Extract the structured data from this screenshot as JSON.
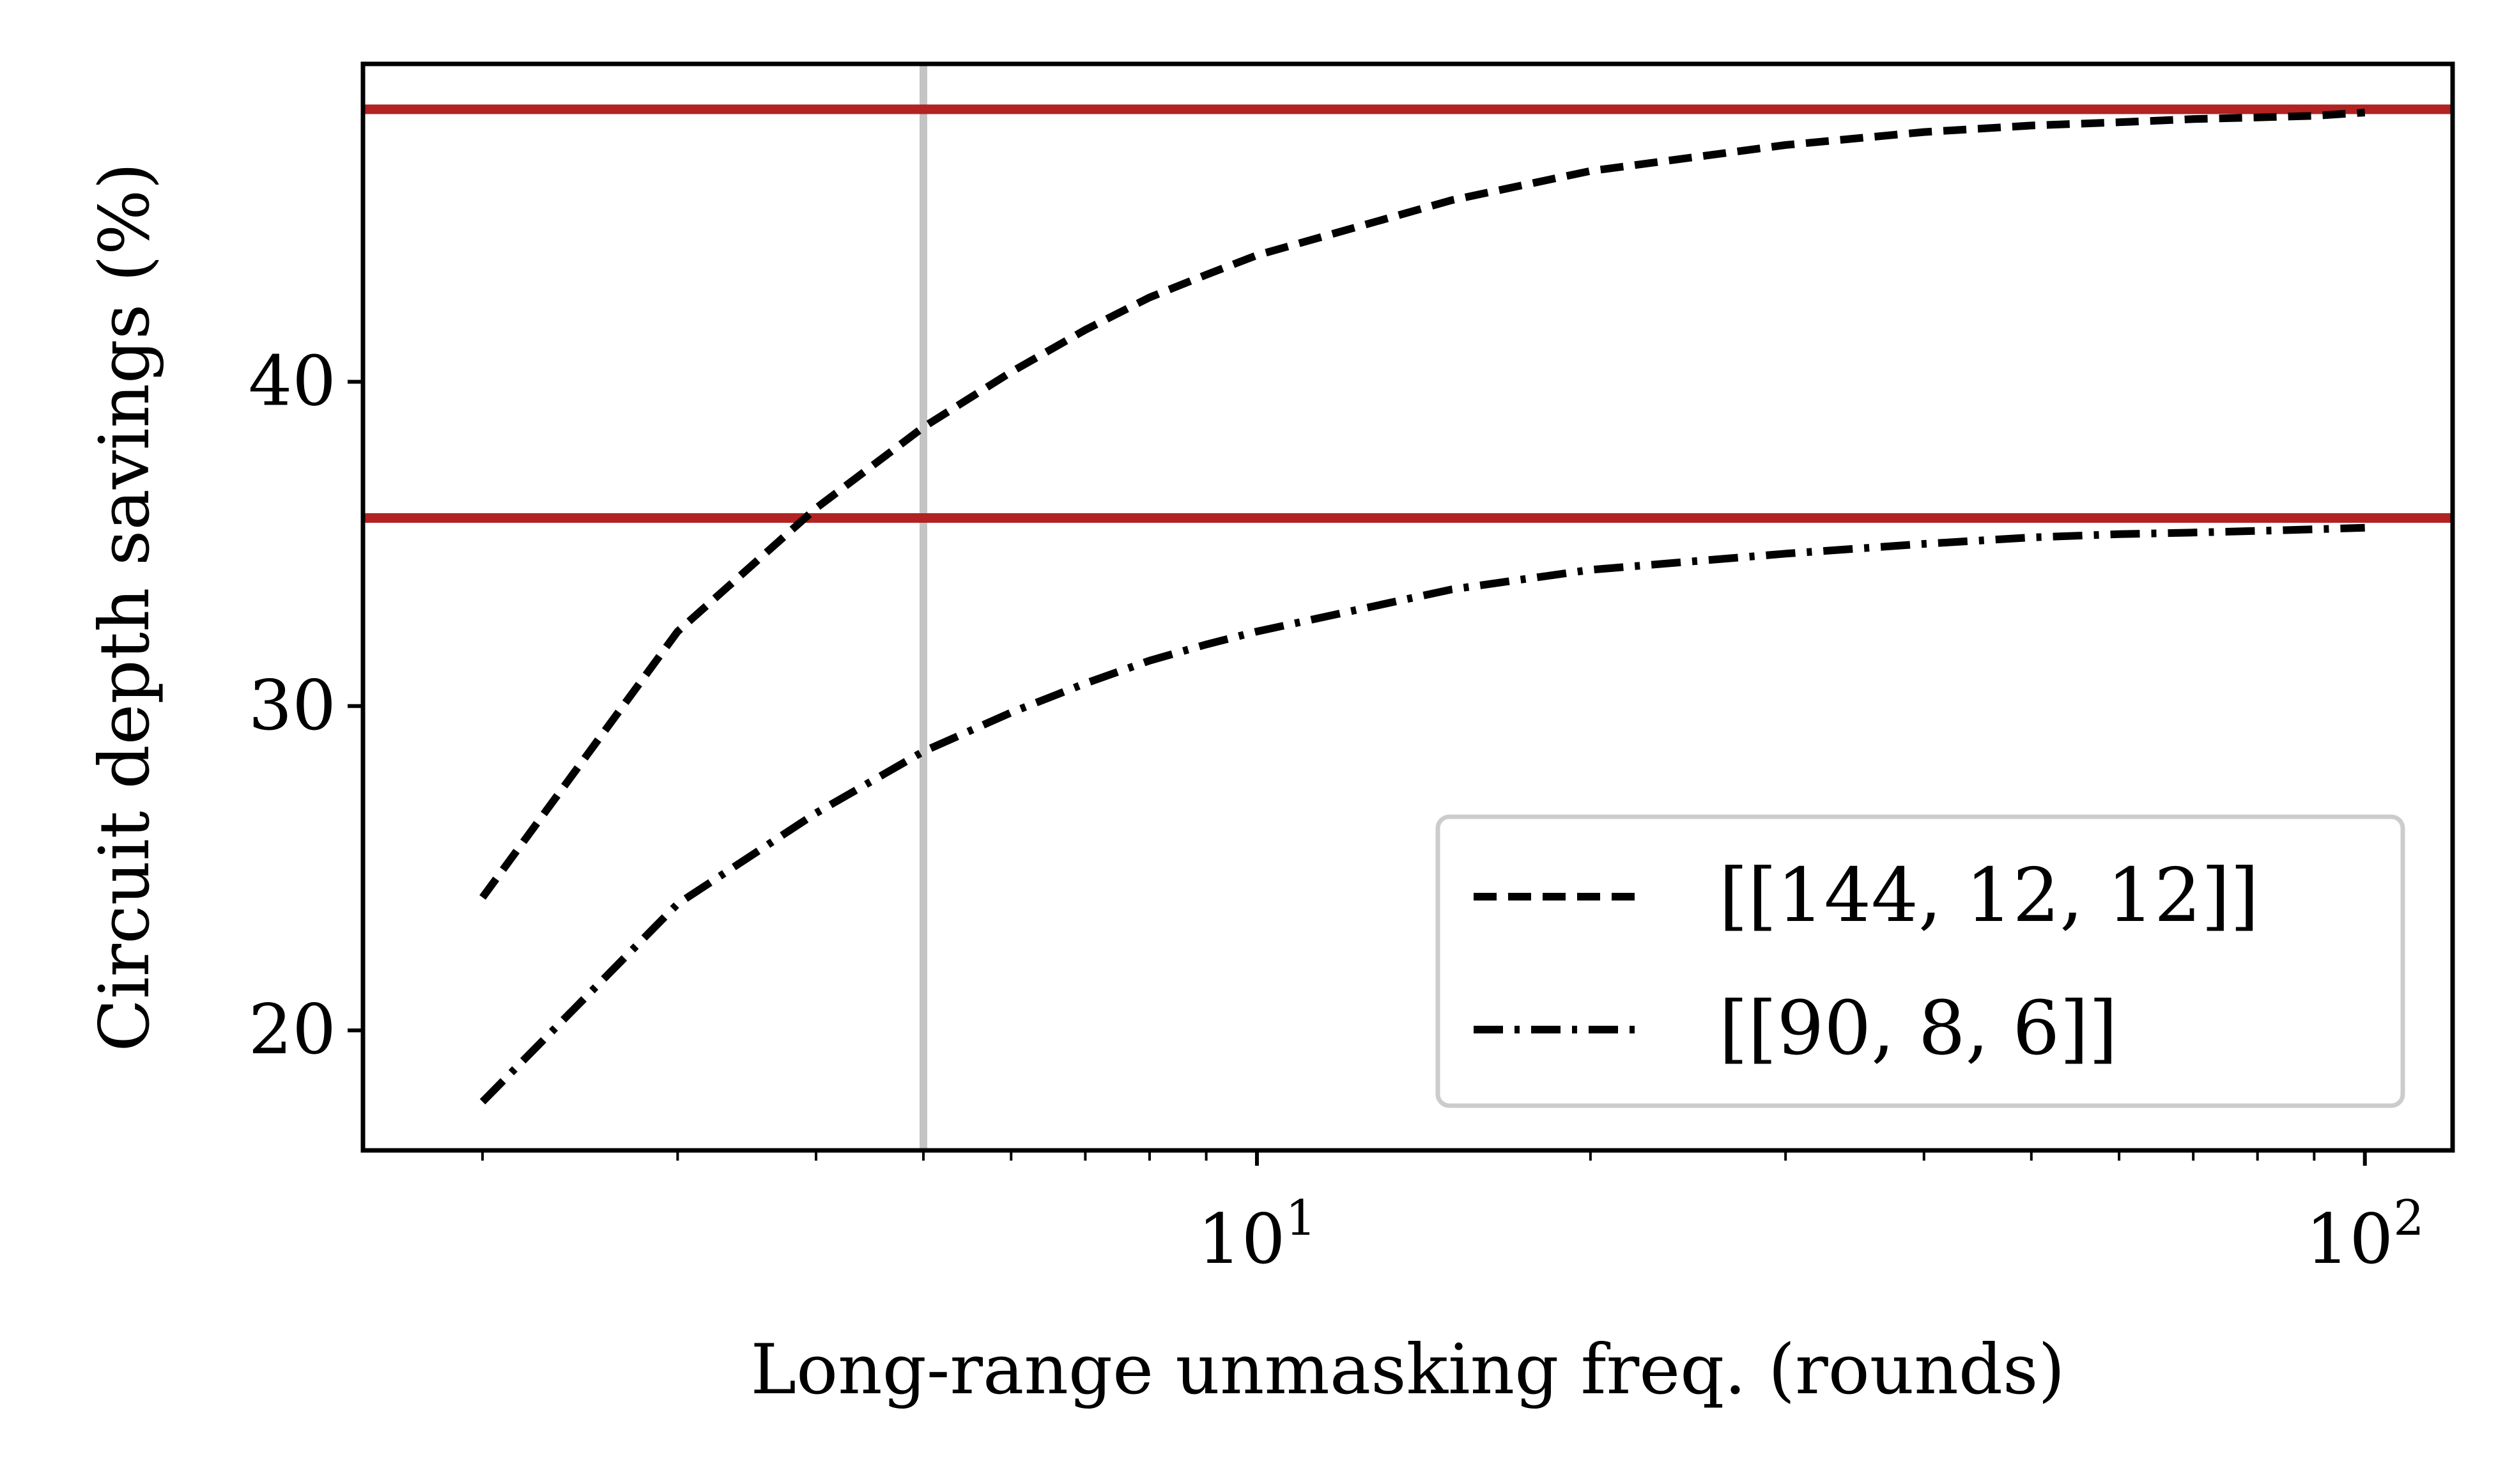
{
  "chart_data": {
    "type": "line",
    "xlabel": "Long-range unmasking freq. (rounds)",
    "ylabel": "Circuit depth savings (%)",
    "x_scale": "log",
    "xlim": [
      1.56,
      120
    ],
    "ylim": [
      16.3,
      49.8
    ],
    "x_ticks": [
      {
        "value": 10,
        "base": "10",
        "exp": "1"
      },
      {
        "value": 100,
        "base": "10",
        "exp": "2"
      }
    ],
    "y_ticks": [
      {
        "value": 20,
        "label": "20"
      },
      {
        "value": 30,
        "label": "30"
      },
      {
        "value": 40,
        "label": "40"
      }
    ],
    "grid": false,
    "legend_position": "lower-right",
    "series": [
      {
        "name": "[[144, 12, 12]]",
        "style": "dashed",
        "color": "#000000",
        "x": [
          2,
          3,
          4,
          5,
          6,
          7,
          8,
          9,
          10,
          15,
          20,
          30,
          40,
          50,
          60,
          70,
          80,
          90,
          100
        ],
        "y": [
          24.1,
          32.3,
          36.1,
          38.6,
          40.3,
          41.6,
          42.6,
          43.3,
          43.9,
          45.6,
          46.5,
          47.3,
          47.7,
          47.9,
          48.0,
          48.1,
          48.15,
          48.2,
          48.3
        ]
      },
      {
        "name": "[[90, 8, 6]]",
        "style": "dashdot",
        "color": "#000000",
        "x": [
          2,
          3,
          4,
          5,
          6,
          7,
          8,
          9,
          10,
          15,
          20,
          30,
          40,
          50,
          60,
          70,
          80,
          90,
          100
        ],
        "y": [
          17.8,
          23.9,
          26.7,
          28.6,
          29.8,
          30.7,
          31.4,
          31.9,
          32.3,
          33.6,
          34.2,
          34.7,
          35.0,
          35.2,
          35.3,
          35.35,
          35.4,
          35.45,
          35.5
        ]
      }
    ],
    "hlines": [
      {
        "y": 48.4,
        "color": "#b22222"
      },
      {
        "y": 35.8,
        "color": "#b22222"
      }
    ],
    "vlines": [
      {
        "x": 5,
        "color": "#c4c4c4"
      }
    ]
  }
}
